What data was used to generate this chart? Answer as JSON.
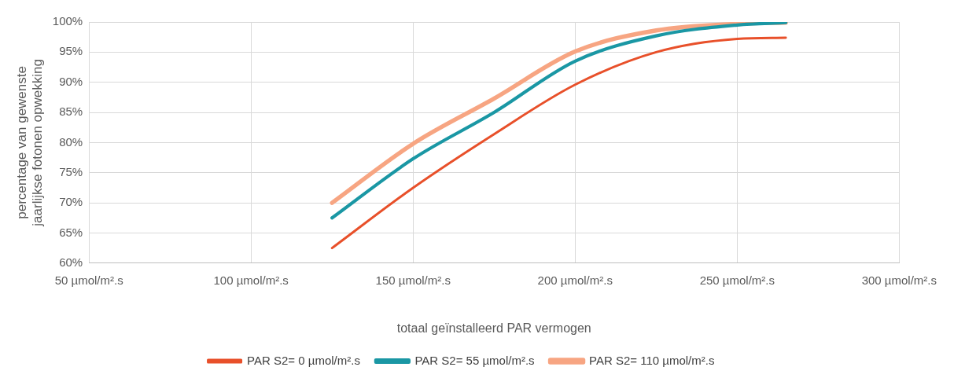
{
  "chart_data": {
    "type": "line",
    "xlabel": "totaal geïnstalleerd PAR vermogen",
    "ylabel": "percentage van gewenste\njaarlijkse fotonen opwekking",
    "x": [
      125,
      150,
      175,
      200,
      225,
      250,
      265
    ],
    "series": [
      {
        "name": "PAR S2= 0 µmol/m².s",
        "color": "#e8502a",
        "values": [
          62.5,
          72.5,
          81.4,
          89.6,
          95.0,
          97.2,
          97.4
        ]
      },
      {
        "name": "PAR S2= 55 µmol/m².s",
        "color": "#1a97a4",
        "values": [
          67.5,
          77.3,
          85.0,
          93.5,
          97.7,
          99.5,
          99.9
        ]
      },
      {
        "name": "PAR S2= 110 µmol/m².s",
        "color": "#f7a582",
        "values": [
          70.0,
          79.8,
          87.3,
          95.1,
          98.6,
          99.7,
          99.9
        ]
      }
    ],
    "xlim": [
      50,
      300
    ],
    "xticks": [
      {
        "value": 50,
        "label": "50 µmol/m².s"
      },
      {
        "value": 100,
        "label": "100 µmol/m².s"
      },
      {
        "value": 150,
        "label": "150 µmol/m².s"
      },
      {
        "value": 200,
        "label": "200 µmol/m².s"
      },
      {
        "value": 250,
        "label": "250 µmol/m².s"
      },
      {
        "value": 300,
        "label": "300 µmol/m².s"
      }
    ],
    "ylim": [
      60,
      100
    ],
    "yticks": [
      {
        "value": 60,
        "label": "60%"
      },
      {
        "value": 65,
        "label": "65%"
      },
      {
        "value": 70,
        "label": "70%"
      },
      {
        "value": 75,
        "label": "75%"
      },
      {
        "value": 80,
        "label": "80%"
      },
      {
        "value": 85,
        "label": "85%"
      },
      {
        "value": 90,
        "label": "90%"
      },
      {
        "value": 95,
        "label": "95%"
      },
      {
        "value": 100,
        "label": "100%"
      }
    ],
    "grid": true,
    "legend": "bottom",
    "marker": "none",
    "line_style": "solid"
  }
}
